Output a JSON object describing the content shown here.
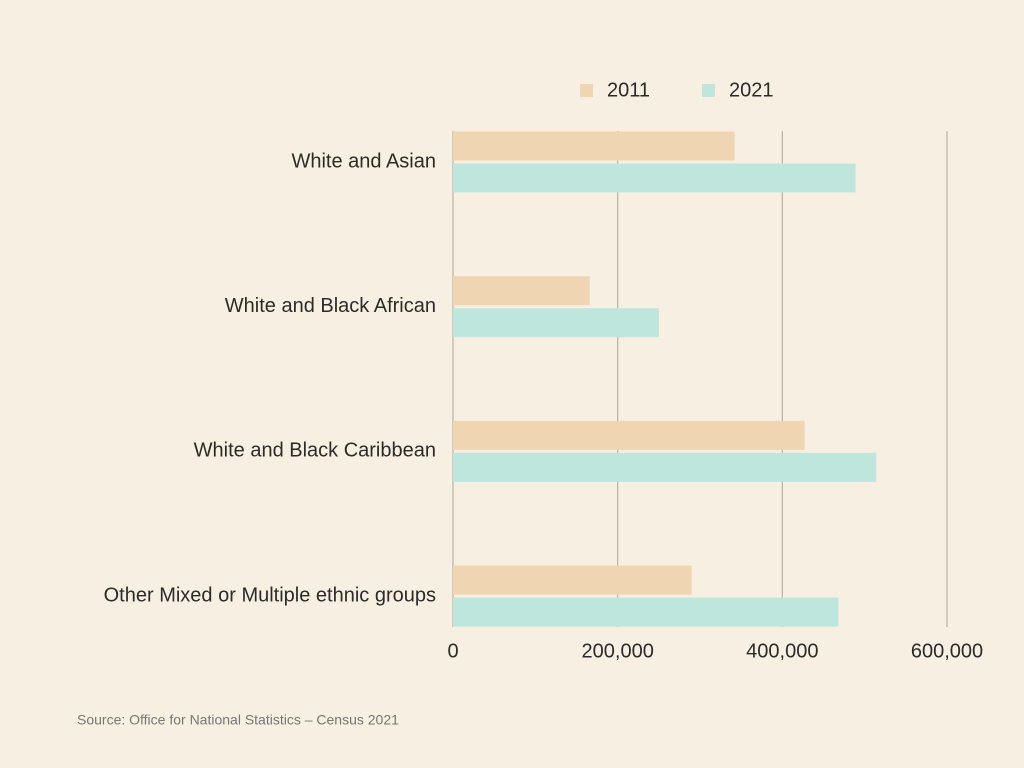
{
  "chart_data": {
    "type": "barh",
    "categories": [
      "White and Asian",
      "White and Black African",
      "White and Black Caribbean",
      "Other Mixed or Multiple ethnic groups"
    ],
    "series": [
      {
        "name": "2011",
        "color": "#f0d5b3",
        "values": [
          342000,
          166000,
          427000,
          290000
        ]
      },
      {
        "name": "2021",
        "color": "#bfe6dc",
        "values": [
          489000,
          250000,
          514000,
          468000
        ]
      }
    ],
    "xlim": [
      0,
      600000
    ],
    "xticks": [
      0,
      {
        "value": 200000,
        "label": "200,000"
      },
      {
        "value": 400000,
        "label": "400,000"
      },
      {
        "value": 600000,
        "label": "600,000"
      }
    ],
    "grid": true,
    "legend": "top",
    "source": "Source: Office for National Statistics – Census 2021"
  }
}
